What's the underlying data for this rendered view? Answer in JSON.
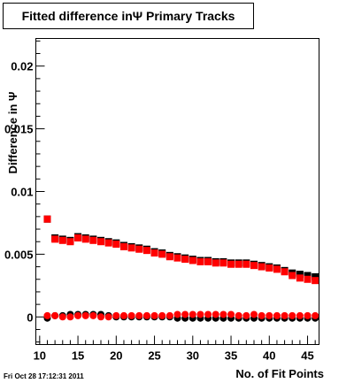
{
  "chart_data": {
    "type": "scatter",
    "title": "Fitted difference inΨ  Primary Tracks",
    "xlabel": "No. of Fit Points",
    "ylabel": "Difference in Ψ",
    "xlim": [
      9.5,
      46.5
    ],
    "ylim": [
      -0.0022,
      0.0222
    ],
    "grid": false,
    "x_ticks": [
      {
        "value": 10,
        "label": "10"
      },
      {
        "value": 15,
        "label": "15"
      },
      {
        "value": 20,
        "label": "20"
      },
      {
        "value": 25,
        "label": "25"
      },
      {
        "value": 30,
        "label": "30"
      },
      {
        "value": 35,
        "label": "35"
      },
      {
        "value": 40,
        "label": "40"
      },
      {
        "value": 45,
        "label": "45"
      }
    ],
    "y_ticks": [
      {
        "value": 0,
        "label": "0"
      },
      {
        "value": 0.005,
        "label": "0.005"
      },
      {
        "value": 0.01,
        "label": "0.01"
      },
      {
        "value": 0.015,
        "label": "0.015"
      },
      {
        "value": 0.02,
        "label": "0.02"
      }
    ],
    "x": [
      11,
      12,
      13,
      14,
      15,
      16,
      17,
      18,
      19,
      20,
      21,
      22,
      23,
      24,
      25,
      26,
      27,
      28,
      29,
      30,
      31,
      32,
      33,
      34,
      35,
      36,
      37,
      38,
      39,
      40,
      41,
      42,
      43,
      44,
      45,
      46
    ],
    "series": [
      {
        "marker": "square",
        "color": "#000000",
        "values": [
          0.0078,
          0.0063,
          0.0062,
          0.0061,
          0.0064,
          0.0063,
          0.0062,
          0.0061,
          0.006,
          0.0059,
          0.0057,
          0.0056,
          0.0055,
          0.0054,
          0.0052,
          0.0051,
          0.0049,
          0.0048,
          0.0047,
          0.0046,
          0.0045,
          0.0045,
          0.0044,
          0.0044,
          0.0043,
          0.0043,
          0.0043,
          0.0042,
          0.0041,
          0.004,
          0.0039,
          0.0037,
          0.0035,
          0.0034,
          0.0033,
          0.0032
        ]
      },
      {
        "marker": "square",
        "color": "#ff0000",
        "values": [
          0.0078,
          0.0062,
          0.0061,
          0.006,
          0.0063,
          0.0062,
          0.0061,
          0.006,
          0.0059,
          0.0058,
          0.0056,
          0.0055,
          0.0054,
          0.0053,
          0.0051,
          0.005,
          0.0048,
          0.0047,
          0.0046,
          0.0045,
          0.0044,
          0.0044,
          0.0043,
          0.0043,
          0.0042,
          0.0042,
          0.0042,
          0.0041,
          0.004,
          0.0039,
          0.0038,
          0.0036,
          0.0033,
          0.0031,
          0.003,
          0.0029
        ]
      },
      {
        "marker": "circle",
        "color": "#000000",
        "values": [
          -0.0001,
          0.0001,
          0.0001,
          0.0002,
          0.0002,
          0.0002,
          0.0002,
          0.0002,
          0.0001,
          0.0,
          0.0,
          0.0,
          0.0,
          0.0,
          0.0,
          0.0,
          0.0,
          -0.0001,
          -0.0001,
          -0.0001,
          -0.0001,
          -0.0001,
          -0.0001,
          -0.0001,
          -0.0001,
          -0.0001,
          -0.0001,
          -0.0001,
          -0.0001,
          -0.0001,
          -0.0001,
          -0.0001,
          -0.0001,
          -0.0001,
          -0.0001,
          -0.0001
        ]
      },
      {
        "marker": "circle",
        "color": "#ff0000",
        "values": [
          0.0001,
          0.0001,
          0.0,
          0.0,
          0.0001,
          0.0001,
          0.0001,
          0.0,
          0.0,
          0.0001,
          0.0001,
          0.0001,
          0.0001,
          0.0001,
          0.0001,
          0.0001,
          0.0001,
          0.0002,
          0.0002,
          0.0002,
          0.0002,
          0.0002,
          0.0002,
          0.0002,
          0.0002,
          0.0001,
          0.0001,
          0.0002,
          0.0001,
          0.0001,
          0.0001,
          0.0001,
          0.0001,
          0.0001,
          0.0001,
          0.0001
        ]
      }
    ]
  },
  "datestamp": "Fri Oct 28 17:12:31 2011"
}
